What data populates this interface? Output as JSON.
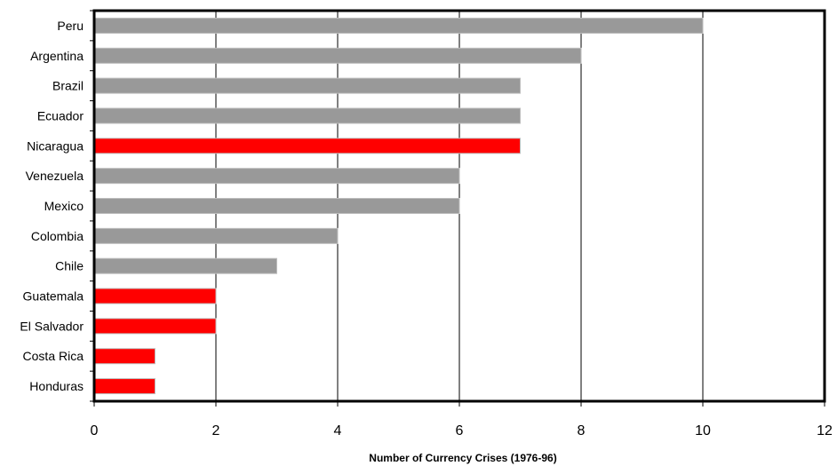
{
  "chart_data": {
    "type": "bar",
    "orientation": "horizontal",
    "xlabel": "Number of Currency Crises (1976-96)",
    "ylabel": "",
    "xlim": [
      0,
      12
    ],
    "xticks": [
      0,
      2,
      4,
      6,
      8,
      10,
      12
    ],
    "grid": "vertical",
    "categories": [
      "Peru",
      "Argentina",
      "Brazil",
      "Ecuador",
      "Nicaragua",
      "Venezuela",
      "Mexico",
      "Colombia",
      "Chile",
      "Guatemala",
      "El Salvador",
      "Costa Rica",
      "Honduras"
    ],
    "values": [
      10,
      8,
      7,
      7,
      7,
      6,
      6,
      4,
      3,
      2,
      2,
      1,
      1
    ],
    "highlighted": [
      false,
      false,
      false,
      false,
      true,
      false,
      false,
      false,
      false,
      true,
      true,
      true,
      true
    ],
    "colors": {
      "default_bar": "#999999",
      "highlight_bar": "#ff0000",
      "gridline": "#000000"
    }
  }
}
